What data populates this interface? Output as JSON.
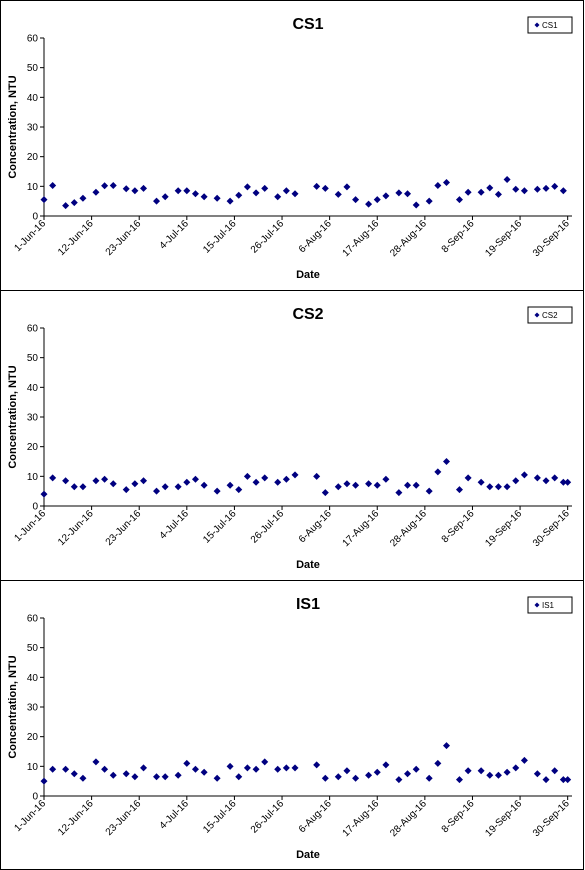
{
  "chart_data": [
    {
      "type": "scatter",
      "title": "CS1",
      "xlabel": "Date",
      "ylabel": "Concentration, NTU",
      "ylim": [
        0,
        60
      ],
      "yticks": [
        "0",
        "10",
        "20",
        "30",
        "40",
        "50",
        "60"
      ],
      "xlim": [
        "2016-06-01",
        "2016-10-01"
      ],
      "xticks": [
        "1-Jun-16",
        "12-Jun-16",
        "23-Jun-16",
        "4-Jul-16",
        "15-Jul-16",
        "26-Jul-16",
        "6-Aug-16",
        "17-Aug-16",
        "28-Aug-16",
        "8-Sep-16",
        "19-Sep-16",
        "30-Sep-16"
      ],
      "grid": false,
      "legend": "top-right",
      "color": "#000080",
      "series": [
        {
          "name": "CS1",
          "x": [
            "2016-06-01",
            "2016-06-03",
            "2016-06-06",
            "2016-06-08",
            "2016-06-10",
            "2016-06-13",
            "2016-06-15",
            "2016-06-17",
            "2016-06-20",
            "2016-06-22",
            "2016-06-24",
            "2016-06-27",
            "2016-06-29",
            "2016-07-02",
            "2016-07-04",
            "2016-07-06",
            "2016-07-08",
            "2016-07-11",
            "2016-07-14",
            "2016-07-16",
            "2016-07-18",
            "2016-07-20",
            "2016-07-22",
            "2016-07-25",
            "2016-07-27",
            "2016-07-29",
            "2016-08-03",
            "2016-08-05",
            "2016-08-08",
            "2016-08-10",
            "2016-08-12",
            "2016-08-15",
            "2016-08-17",
            "2016-08-19",
            "2016-08-22",
            "2016-08-24",
            "2016-08-26",
            "2016-08-29",
            "2016-08-31",
            "2016-09-02",
            "2016-09-05",
            "2016-09-07",
            "2016-09-10",
            "2016-09-12",
            "2016-09-14",
            "2016-09-16",
            "2016-09-18",
            "2016-09-20",
            "2016-09-23",
            "2016-09-25",
            "2016-09-27",
            "2016-09-29"
          ],
          "y": [
            5.5,
            10.3,
            3.5,
            4.5,
            6.0,
            8.0,
            10.2,
            10.3,
            9.2,
            8.5,
            9.3,
            5.0,
            6.5,
            8.5,
            8.5,
            7.5,
            6.5,
            6.0,
            5.0,
            7.0,
            9.8,
            7.8,
            9.3,
            6.5,
            8.5,
            7.5,
            10.0,
            9.3,
            7.3,
            9.8,
            5.5,
            4.0,
            5.5,
            6.8,
            7.8,
            7.5,
            3.7,
            5.0,
            10.3,
            11.3,
            5.5,
            8.0,
            8.0,
            9.5,
            7.3,
            12.3,
            9.0,
            8.5,
            9.0,
            9.3,
            10.0,
            8.5
          ]
        }
      ]
    },
    {
      "type": "scatter",
      "title": "CS2",
      "xlabel": "Date",
      "ylabel": "Concentration, NTU",
      "ylim": [
        0,
        60
      ],
      "yticks": [
        "0",
        "10",
        "20",
        "30",
        "40",
        "50",
        "60"
      ],
      "xlim": [
        "2016-06-01",
        "2016-10-01"
      ],
      "xticks": [
        "1-Jun-16",
        "12-Jun-16",
        "23-Jun-16",
        "4-Jul-16",
        "15-Jul-16",
        "26-Jul-16",
        "6-Aug-16",
        "17-Aug-16",
        "28-Aug-16",
        "8-Sep-16",
        "19-Sep-16",
        "30-Sep-16"
      ],
      "grid": false,
      "legend": "top-right",
      "color": "#000080",
      "series": [
        {
          "name": "CS2",
          "x": [
            "2016-06-01",
            "2016-06-03",
            "2016-06-06",
            "2016-06-08",
            "2016-06-10",
            "2016-06-13",
            "2016-06-15",
            "2016-06-17",
            "2016-06-20",
            "2016-06-22",
            "2016-06-24",
            "2016-06-27",
            "2016-06-29",
            "2016-07-02",
            "2016-07-04",
            "2016-07-06",
            "2016-07-08",
            "2016-07-11",
            "2016-07-14",
            "2016-07-16",
            "2016-07-18",
            "2016-07-20",
            "2016-07-22",
            "2016-07-25",
            "2016-07-27",
            "2016-07-29",
            "2016-08-03",
            "2016-08-05",
            "2016-08-08",
            "2016-08-10",
            "2016-08-12",
            "2016-08-15",
            "2016-08-17",
            "2016-08-19",
            "2016-08-22",
            "2016-08-24",
            "2016-08-26",
            "2016-08-29",
            "2016-08-31",
            "2016-09-02",
            "2016-09-05",
            "2016-09-07",
            "2016-09-10",
            "2016-09-12",
            "2016-09-14",
            "2016-09-16",
            "2016-09-18",
            "2016-09-20",
            "2016-09-23",
            "2016-09-25",
            "2016-09-27",
            "2016-09-29",
            "2016-09-30"
          ],
          "y": [
            4.0,
            9.5,
            8.5,
            6.5,
            6.5,
            8.5,
            9.0,
            7.5,
            5.5,
            7.5,
            8.5,
            5.0,
            6.5,
            6.5,
            8.0,
            9.0,
            7.0,
            5.0,
            7.0,
            5.5,
            10.0,
            8.0,
            9.5,
            8.0,
            9.0,
            10.5,
            10.0,
            4.5,
            6.5,
            7.5,
            7.0,
            7.5,
            7.0,
            9.0,
            4.5,
            7.0,
            7.0,
            5.0,
            11.5,
            15.0,
            5.5,
            9.5,
            8.0,
            6.5,
            6.5,
            6.5,
            8.5,
            10.5,
            9.5,
            8.5,
            9.5,
            8.0,
            8.0
          ]
        }
      ]
    },
    {
      "type": "scatter",
      "title": "IS1",
      "xlabel": "Date",
      "ylabel": "Concentration, NTU",
      "ylim": [
        0,
        60
      ],
      "yticks": [
        "0",
        "10",
        "20",
        "30",
        "40",
        "50",
        "60"
      ],
      "xlim": [
        "2016-06-01",
        "2016-10-01"
      ],
      "xticks": [
        "1-Jun-16",
        "12-Jun-16",
        "23-Jun-16",
        "4-Jul-16",
        "15-Jul-16",
        "26-Jul-16",
        "6-Aug-16",
        "17-Aug-16",
        "28-Aug-16",
        "8-Sep-16",
        "19-Sep-16",
        "30-Sep-16"
      ],
      "grid": false,
      "legend": "top-right",
      "color": "#000080",
      "series": [
        {
          "name": "IS1",
          "x": [
            "2016-06-01",
            "2016-06-03",
            "2016-06-06",
            "2016-06-08",
            "2016-06-10",
            "2016-06-13",
            "2016-06-15",
            "2016-06-17",
            "2016-06-20",
            "2016-06-22",
            "2016-06-24",
            "2016-06-27",
            "2016-06-29",
            "2016-07-02",
            "2016-07-04",
            "2016-07-06",
            "2016-07-08",
            "2016-07-11",
            "2016-07-14",
            "2016-07-16",
            "2016-07-18",
            "2016-07-20",
            "2016-07-22",
            "2016-07-25",
            "2016-07-27",
            "2016-07-29",
            "2016-08-03",
            "2016-08-05",
            "2016-08-08",
            "2016-08-10",
            "2016-08-12",
            "2016-08-15",
            "2016-08-17",
            "2016-08-19",
            "2016-08-22",
            "2016-08-24",
            "2016-08-26",
            "2016-08-29",
            "2016-08-31",
            "2016-09-02",
            "2016-09-05",
            "2016-09-07",
            "2016-09-10",
            "2016-09-12",
            "2016-09-14",
            "2016-09-16",
            "2016-09-18",
            "2016-09-20",
            "2016-09-23",
            "2016-09-25",
            "2016-09-27",
            "2016-09-29",
            "2016-09-30"
          ],
          "y": [
            5.0,
            9.0,
            9.0,
            7.5,
            6.0,
            11.5,
            9.0,
            7.0,
            7.5,
            6.5,
            9.5,
            6.5,
            6.5,
            7.0,
            11.0,
            9.0,
            8.0,
            6.0,
            10.0,
            6.5,
            9.5,
            9.0,
            11.5,
            9.0,
            9.5,
            9.5,
            10.5,
            6.0,
            6.5,
            8.5,
            6.0,
            7.0,
            8.0,
            10.5,
            5.5,
            7.5,
            9.0,
            6.0,
            11.0,
            17.0,
            5.5,
            8.5,
            8.5,
            7.0,
            7.0,
            8.0,
            9.5,
            12.0,
            7.5,
            5.5,
            8.5,
            5.5,
            5.5
          ]
        }
      ]
    }
  ]
}
